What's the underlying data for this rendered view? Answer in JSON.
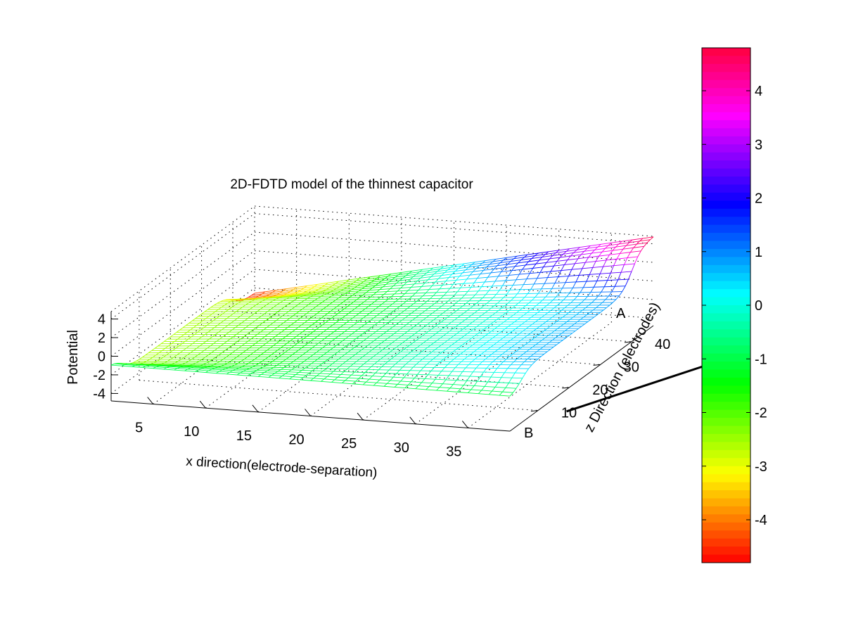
{
  "chart_data": {
    "type": "surface",
    "title": "2D-FDTD model of the thinnest capacitor",
    "xlabel": "x direction(electrode-separation)",
    "ylabel": "z Direction (electrodes)",
    "zlabel": "Potential",
    "x_ticks": [
      5,
      10,
      15,
      20,
      25,
      30,
      35
    ],
    "y_ticks": [
      10,
      20,
      30,
      40
    ],
    "z_ticks": [
      4,
      2,
      0,
      -2,
      -4
    ],
    "electrode_labels": [
      "A",
      "B"
    ],
    "xlim": [
      1,
      39
    ],
    "ylim": [
      1,
      47
    ],
    "zlim": [
      -4.8,
      4.8
    ],
    "colormap": "hsv",
    "grid": true,
    "colorbar": {
      "range": [
        -4.8,
        4.8
      ],
      "ticks": [
        4,
        3,
        2,
        1,
        0,
        -1,
        -2,
        -3,
        -4
      ],
      "colors": 64
    },
    "surface": {
      "description_values": {
        "corner_max": 4.8,
        "corner_min": -3.2,
        "mid_edge_value": -2.3
      }
    }
  }
}
